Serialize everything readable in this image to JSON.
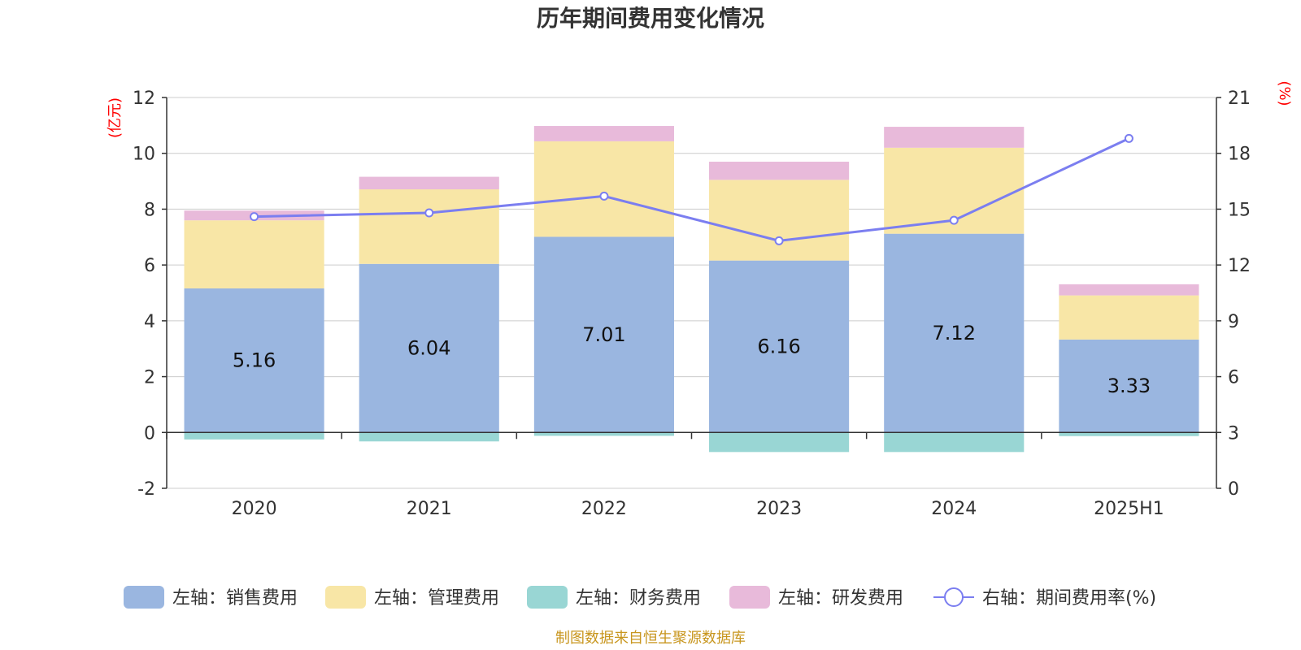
{
  "chart_data": {
    "type": "bar",
    "title": "历年期间费用变化情况",
    "categories": [
      "2020",
      "2021",
      "2022",
      "2023",
      "2024",
      "2025H1"
    ],
    "y_left": {
      "unit": "(亿元)",
      "ylim": [
        -2,
        12
      ],
      "ticks": [
        "-2",
        "0",
        "2",
        "4",
        "6",
        "8",
        "10",
        "12"
      ]
    },
    "y_right": {
      "unit": "(%)",
      "ylim": [
        0,
        21
      ],
      "ticks": [
        "0",
        "3",
        "6",
        "9",
        "12",
        "15",
        "18",
        "21"
      ]
    },
    "series": [
      {
        "name": "左轴：销售费用",
        "type": "bar",
        "axis": "left",
        "color": "#9ab6e0",
        "values": [
          5.16,
          6.04,
          7.01,
          6.16,
          7.12,
          3.33
        ],
        "labels": [
          "5.16",
          "6.04",
          "7.01",
          "6.16",
          "7.12",
          "3.33"
        ]
      },
      {
        "name": "左轴：管理费用",
        "type": "bar",
        "axis": "left",
        "color": "#f8e6a6",
        "values": [
          2.44,
          2.67,
          3.42,
          2.89,
          3.08,
          1.58
        ]
      },
      {
        "name": "左轴：财务费用",
        "type": "bar",
        "axis": "left",
        "color": "#99d6d4",
        "values": [
          -0.25,
          -0.32,
          -0.12,
          -0.7,
          -0.7,
          -0.13
        ]
      },
      {
        "name": "左轴：研发费用",
        "type": "bar",
        "axis": "left",
        "color": "#e8bada",
        "values": [
          0.35,
          0.45,
          0.55,
          0.65,
          0.75,
          0.4
        ]
      },
      {
        "name": "右轴：期间费用率(%)",
        "type": "line",
        "axis": "right",
        "color": "#7b7ef0",
        "values": [
          14.6,
          14.8,
          15.7,
          13.3,
          14.4,
          18.8
        ]
      }
    ],
    "grid": true,
    "legend_position": "bottom"
  },
  "footer": {
    "source": "制图数据来自恒生聚源数据库"
  }
}
